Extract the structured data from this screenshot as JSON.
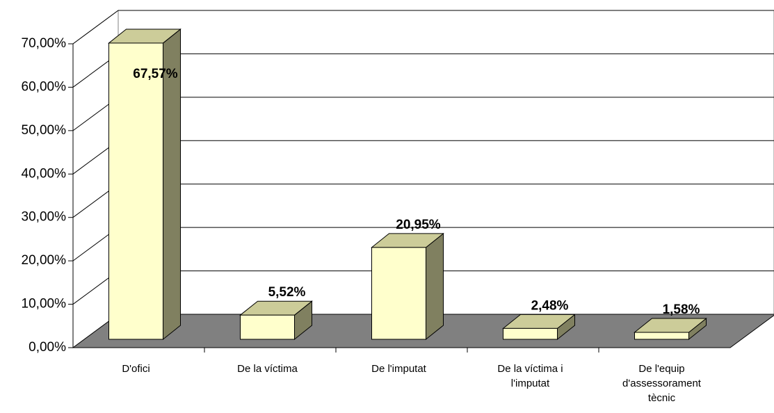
{
  "chart_data": {
    "type": "bar3d",
    "categories": [
      "D'ofici",
      "De la víctima",
      "De l'imputat",
      "De la víctima i l'imputat",
      "De l'equip d'assessorament tècnic"
    ],
    "values": [
      67.57,
      5.52,
      20.95,
      2.48,
      1.58
    ],
    "value_labels": [
      "67,57%",
      "5,52%",
      "20,95%",
      "2,48%",
      "1,58%"
    ],
    "color": "#ffffcc",
    "ylim": [
      0,
      70
    ],
    "yticks": [
      {
        "value": 0,
        "label": "0,00%"
      },
      {
        "value": 10,
        "label": "10,00%"
      },
      {
        "value": 20,
        "label": "20,00%"
      },
      {
        "value": 30,
        "label": "30,00%"
      },
      {
        "value": 40,
        "label": "40,00%"
      },
      {
        "value": 50,
        "label": "50,00%"
      },
      {
        "value": 60,
        "label": "60,00%"
      },
      {
        "value": 70,
        "label": "70,00%"
      }
    ],
    "grid": true
  }
}
